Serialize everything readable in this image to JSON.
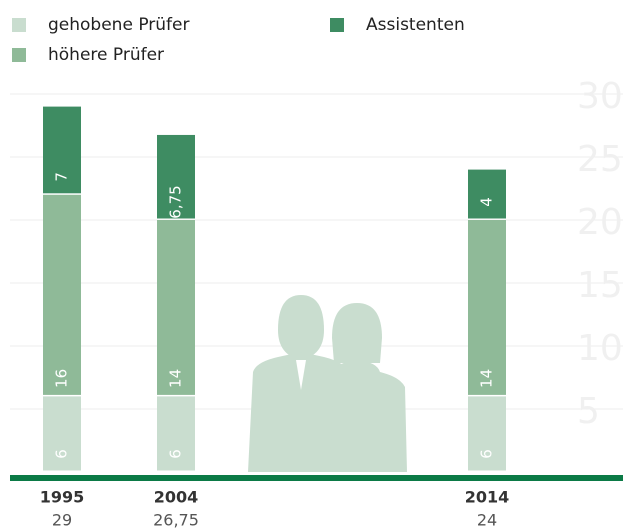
{
  "chart_data": {
    "type": "stacked-bar",
    "categories": [
      "1995",
      "2004",
      "2014"
    ],
    "series": [
      {
        "name": "gehobene Prüfer",
        "color": "#c9ddcf",
        "values": [
          6,
          6,
          6
        ]
      },
      {
        "name": "höhere Prüfer",
        "color": "#8fba98",
        "values": [
          16,
          14,
          14
        ]
      },
      {
        "name": "Assistenten",
        "color": "#3e8c62",
        "values": [
          7,
          6.75,
          4
        ],
        "value_labels": [
          "7",
          "6,75",
          "4"
        ]
      }
    ],
    "totals": {
      "values": [
        29,
        26.75,
        24
      ],
      "value_labels": [
        "29",
        "26,75",
        "24"
      ]
    },
    "ylim": [
      0,
      30
    ],
    "yticks": [
      5,
      10,
      15,
      20,
      25,
      30
    ],
    "grid": true
  }
}
